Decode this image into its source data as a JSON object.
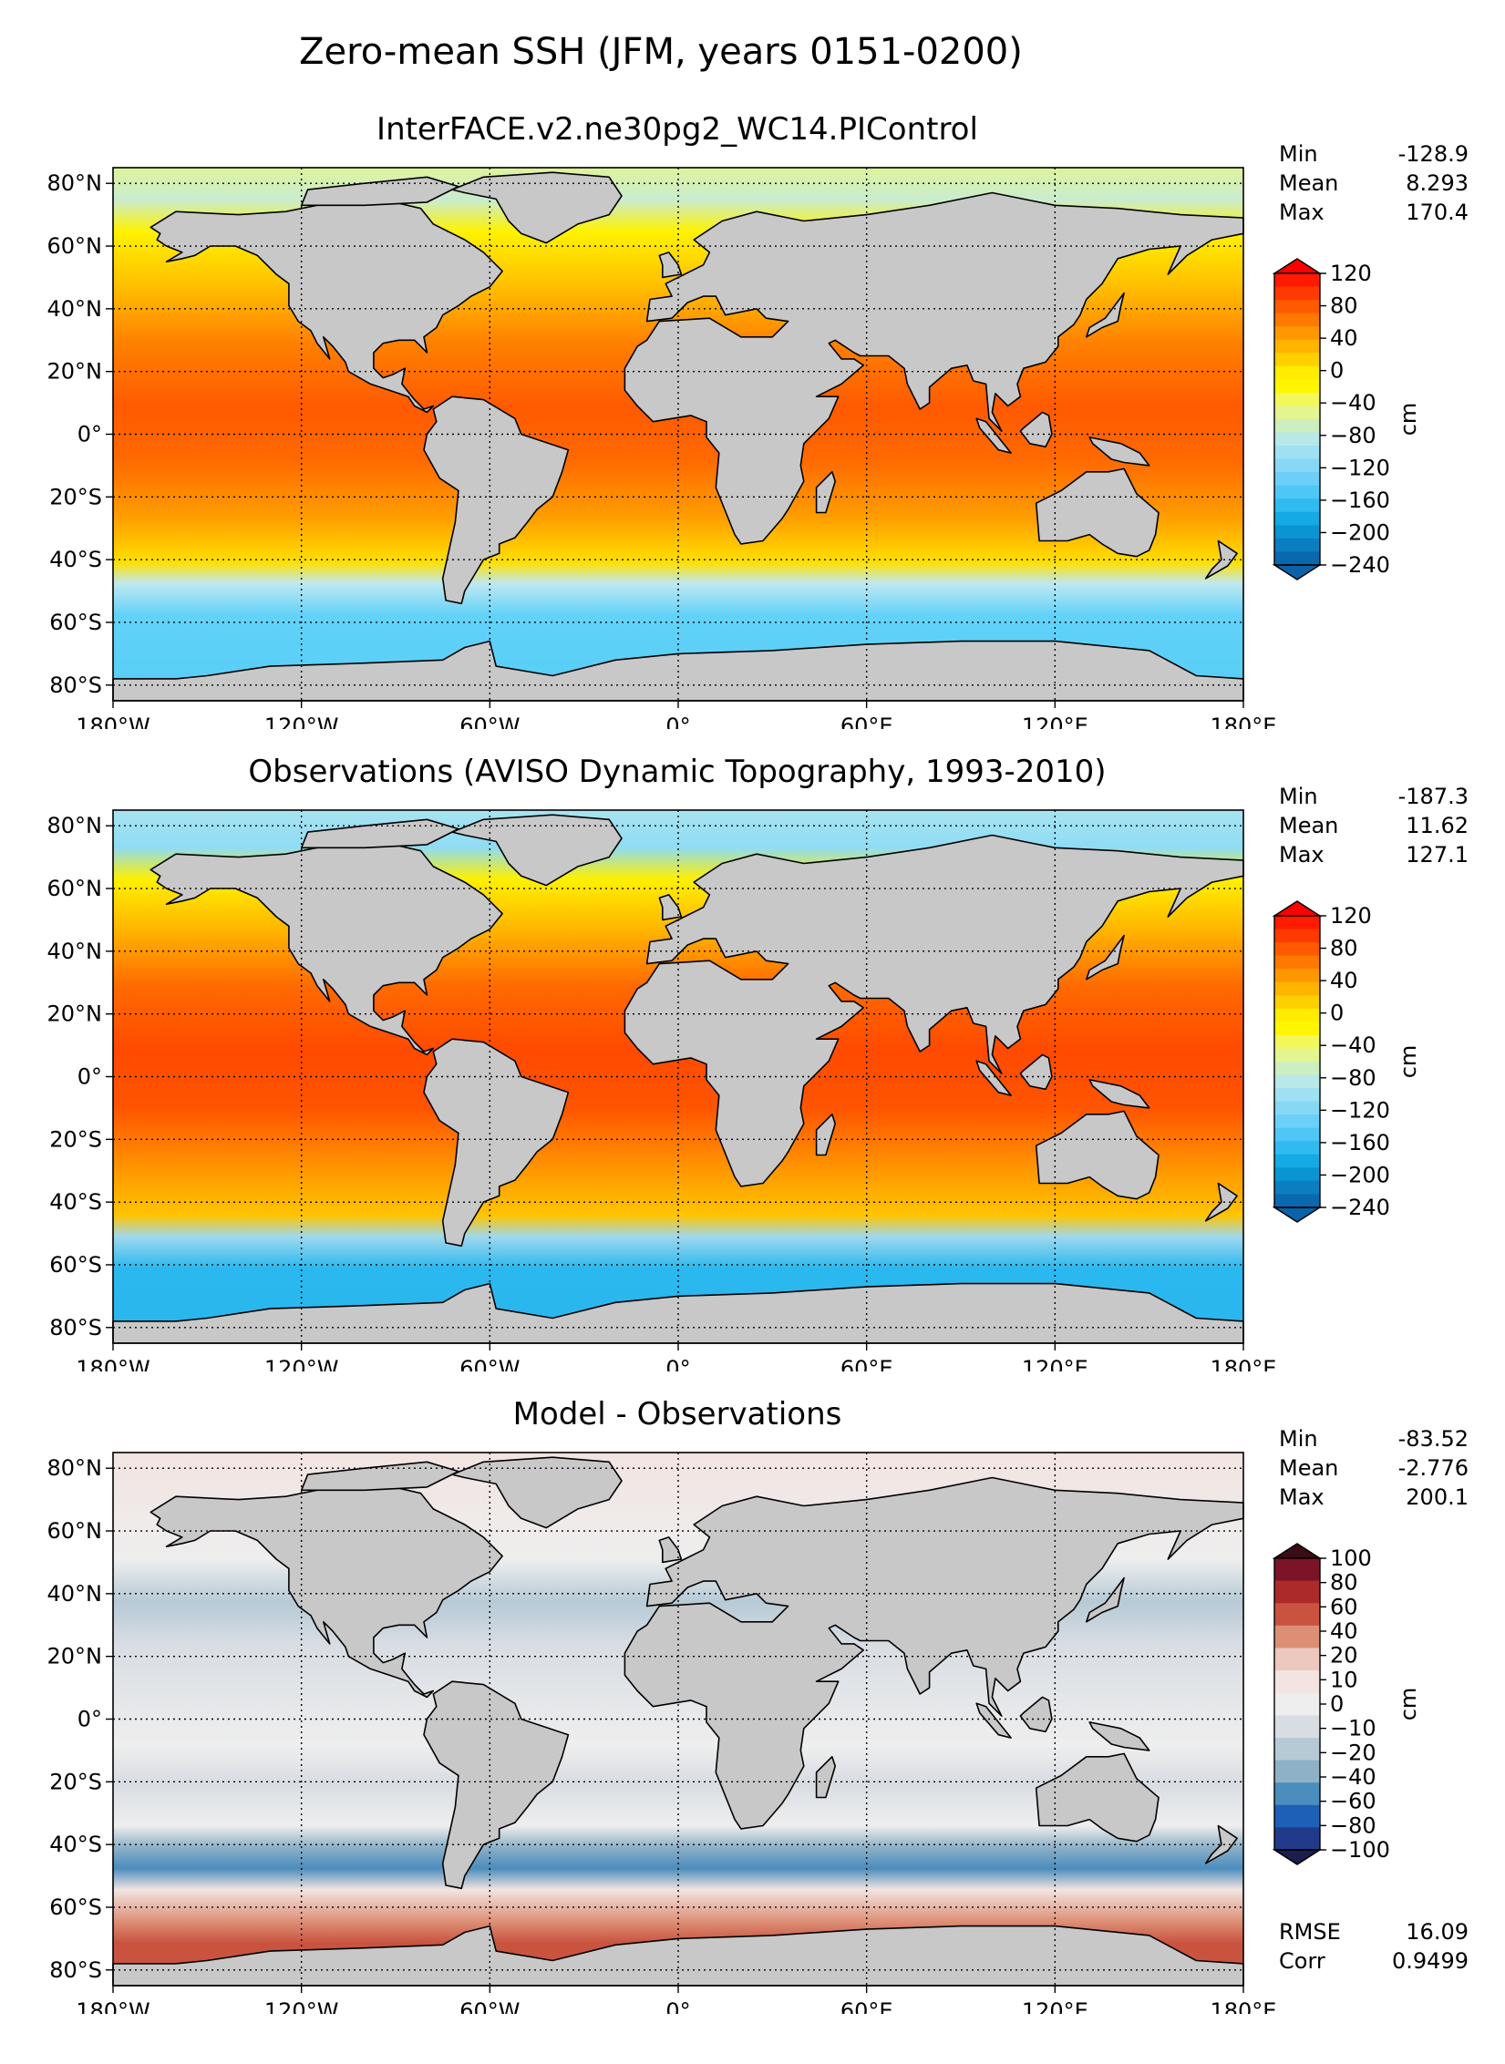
{
  "figure_title": "Zero-mean SSH (JFM, years 0151-0200)",
  "chart_data": [
    {
      "type": "heatmap",
      "title": "InterFACE.v2.ne30pg2_WC14.PIControl",
      "xticks": [
        "180°W",
        "120°W",
        "60°W",
        "0°",
        "60°E",
        "120°E",
        "180°E"
      ],
      "yticks": [
        "80°N",
        "60°N",
        "40°N",
        "20°N",
        "0°",
        "20°S",
        "40°S",
        "60°S",
        "80°S"
      ],
      "xlim": [
        -180,
        180
      ],
      "ylim": [
        -85,
        85
      ],
      "stats": [
        {
          "label": "Min",
          "value": "-128.9"
        },
        {
          "label": "Mean",
          "value": "8.293"
        },
        {
          "label": "Max",
          "value": "170.4"
        }
      ],
      "colorbar": {
        "label": "cm",
        "ticks": [
          "120",
          "80",
          "40",
          "0",
          "−40",
          "−80",
          "−120",
          "−160",
          "−200",
          "−240"
        ],
        "colors": [
          "#ff1a00",
          "#ff3a00",
          "#ff5a00",
          "#ff7800",
          "#ff9800",
          "#ffb400",
          "#ffd000",
          "#ffec00",
          "#fff600",
          "#f2f75a",
          "#e3f590",
          "#cdeec0",
          "#b8e8e8",
          "#9fe0f2",
          "#86d8f5",
          "#6ccff8",
          "#4ec6f6",
          "#2fbaf0",
          "#14aae6",
          "#0a94d2",
          "#0a7ec0",
          "#0a68ae"
        ],
        "min_color": "#0b62a8",
        "max_color": "#ff0000"
      }
    },
    {
      "type": "heatmap",
      "title": "Observations (AVISO Dynamic Topography, 1993-2010)",
      "xticks": [
        "180°W",
        "120°W",
        "60°W",
        "0°",
        "60°E",
        "120°E",
        "180°E"
      ],
      "yticks": [
        "80°N",
        "60°N",
        "40°N",
        "20°N",
        "0°",
        "20°S",
        "40°S",
        "60°S",
        "80°S"
      ],
      "xlim": [
        -180,
        180
      ],
      "ylim": [
        -85,
        85
      ],
      "stats": [
        {
          "label": "Min",
          "value": "-187.3"
        },
        {
          "label": "Mean",
          "value": "11.62"
        },
        {
          "label": "Max",
          "value": "127.1"
        }
      ],
      "colorbar": {
        "label": "cm",
        "ticks": [
          "120",
          "80",
          "40",
          "0",
          "−40",
          "−80",
          "−120",
          "−160",
          "−200",
          "−240"
        ],
        "colors": [
          "#ff1a00",
          "#ff3a00",
          "#ff5a00",
          "#ff7800",
          "#ff9800",
          "#ffb400",
          "#ffd000",
          "#ffec00",
          "#fff600",
          "#f2f75a",
          "#e3f590",
          "#cdeec0",
          "#b8e8e8",
          "#9fe0f2",
          "#86d8f5",
          "#6ccff8",
          "#4ec6f6",
          "#2fbaf0",
          "#14aae6",
          "#0a94d2",
          "#0a7ec0",
          "#0a68ae"
        ],
        "min_color": "#0b62a8",
        "max_color": "#ff0000"
      }
    },
    {
      "type": "heatmap",
      "title": "Model - Observations",
      "xticks": [
        "180°W",
        "120°W",
        "60°W",
        "0°",
        "60°E",
        "120°E",
        "180°E"
      ],
      "yticks": [
        "80°N",
        "60°N",
        "40°N",
        "20°N",
        "0°",
        "20°S",
        "40°S",
        "60°S",
        "80°S"
      ],
      "xlim": [
        -180,
        180
      ],
      "ylim": [
        -85,
        85
      ],
      "stats": [
        {
          "label": "Min",
          "value": "-83.52"
        },
        {
          "label": "Mean",
          "value": "-2.776"
        },
        {
          "label": "Max",
          "value": "200.1"
        }
      ],
      "extra_stats": [
        {
          "label": "RMSE",
          "value": "16.09"
        },
        {
          "label": "Corr",
          "value": "0.9499"
        }
      ],
      "colorbar": {
        "label": "cm",
        "ticks": [
          "100",
          "80",
          "60",
          "40",
          "20",
          "10",
          "0",
          "−10",
          "−20",
          "−40",
          "−60",
          "−80",
          "−100"
        ],
        "colors": [
          "#7a1426",
          "#ad2a2a",
          "#c9533f",
          "#dd8f76",
          "#ecc8bf",
          "#f3e4e1",
          "#eeeeee",
          "#d8dde3",
          "#b6cad6",
          "#8eb1c7",
          "#4b8dbd",
          "#1c60b8",
          "#213a8a"
        ],
        "min_color": "#1a1f4c",
        "max_color": "#3a0d15"
      }
    }
  ]
}
